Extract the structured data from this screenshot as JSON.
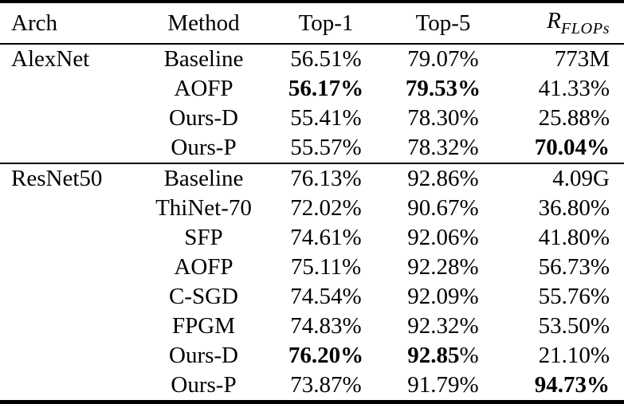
{
  "colors": {
    "background": "#ffffff",
    "text": "#000000",
    "rule": "#000000"
  },
  "table": {
    "columns": {
      "arch": "Arch",
      "method": "Method",
      "top1": "Top-1",
      "top5": "Top-5",
      "rflops_base": "R",
      "rflops_sub": "FLOPs"
    },
    "sections": [
      {
        "arch": "AlexNet",
        "rows": [
          {
            "method": "Baseline",
            "top1": {
              "normal": "56.51%"
            },
            "top5": {
              "normal": "79.07%"
            },
            "rflops": {
              "normal": "773M"
            }
          },
          {
            "method": "AOFP",
            "top1": {
              "bold": "56.17%"
            },
            "top5": {
              "bold": "79.53%"
            },
            "rflops": {
              "normal": "41.33%"
            }
          },
          {
            "method": "Ours-D",
            "top1": {
              "normal": "55.41%"
            },
            "top5": {
              "normal": "78.30%"
            },
            "rflops": {
              "normal": "25.88%"
            }
          },
          {
            "method": "Ours-P",
            "top1": {
              "normal": "55.57%"
            },
            "top5": {
              "normal": "78.32%"
            },
            "rflops": {
              "bold": "70.04%"
            }
          }
        ]
      },
      {
        "arch": "ResNet50",
        "rows": [
          {
            "method": "Baseline",
            "top1": {
              "normal": "76.13%"
            },
            "top5": {
              "normal": "92.86%"
            },
            "rflops": {
              "normal": "4.09G"
            }
          },
          {
            "method": "ThiNet-70",
            "top1": {
              "normal": "72.02%"
            },
            "top5": {
              "normal": "90.67%"
            },
            "rflops": {
              "normal": "36.80%"
            }
          },
          {
            "method": "SFP",
            "top1": {
              "normal": "74.61%"
            },
            "top5": {
              "normal": "92.06%"
            },
            "rflops": {
              "normal": "41.80%"
            }
          },
          {
            "method": "AOFP",
            "top1": {
              "normal": "75.11%"
            },
            "top5": {
              "normal": "92.28%"
            },
            "rflops": {
              "normal": "56.73%"
            }
          },
          {
            "method": "C-SGD",
            "top1": {
              "normal": "74.54%"
            },
            "top5": {
              "normal": "92.09%"
            },
            "rflops": {
              "normal": "55.76%"
            }
          },
          {
            "method": "FPGM",
            "top1": {
              "normal": "74.83%"
            },
            "top5": {
              "normal": "92.32%"
            },
            "rflops": {
              "normal": "53.50%"
            }
          },
          {
            "method": "Ours-D",
            "top1": {
              "bold": "76.20%"
            },
            "top5": {
              "bold": "92.85",
              "normal": "%"
            },
            "rflops": {
              "normal": "21.10%"
            }
          },
          {
            "method": "Ours-P",
            "top1": {
              "normal": "73.87%"
            },
            "top5": {
              "normal": "91.79%"
            },
            "rflops": {
              "bold": "94.73%"
            }
          }
        ]
      }
    ]
  }
}
